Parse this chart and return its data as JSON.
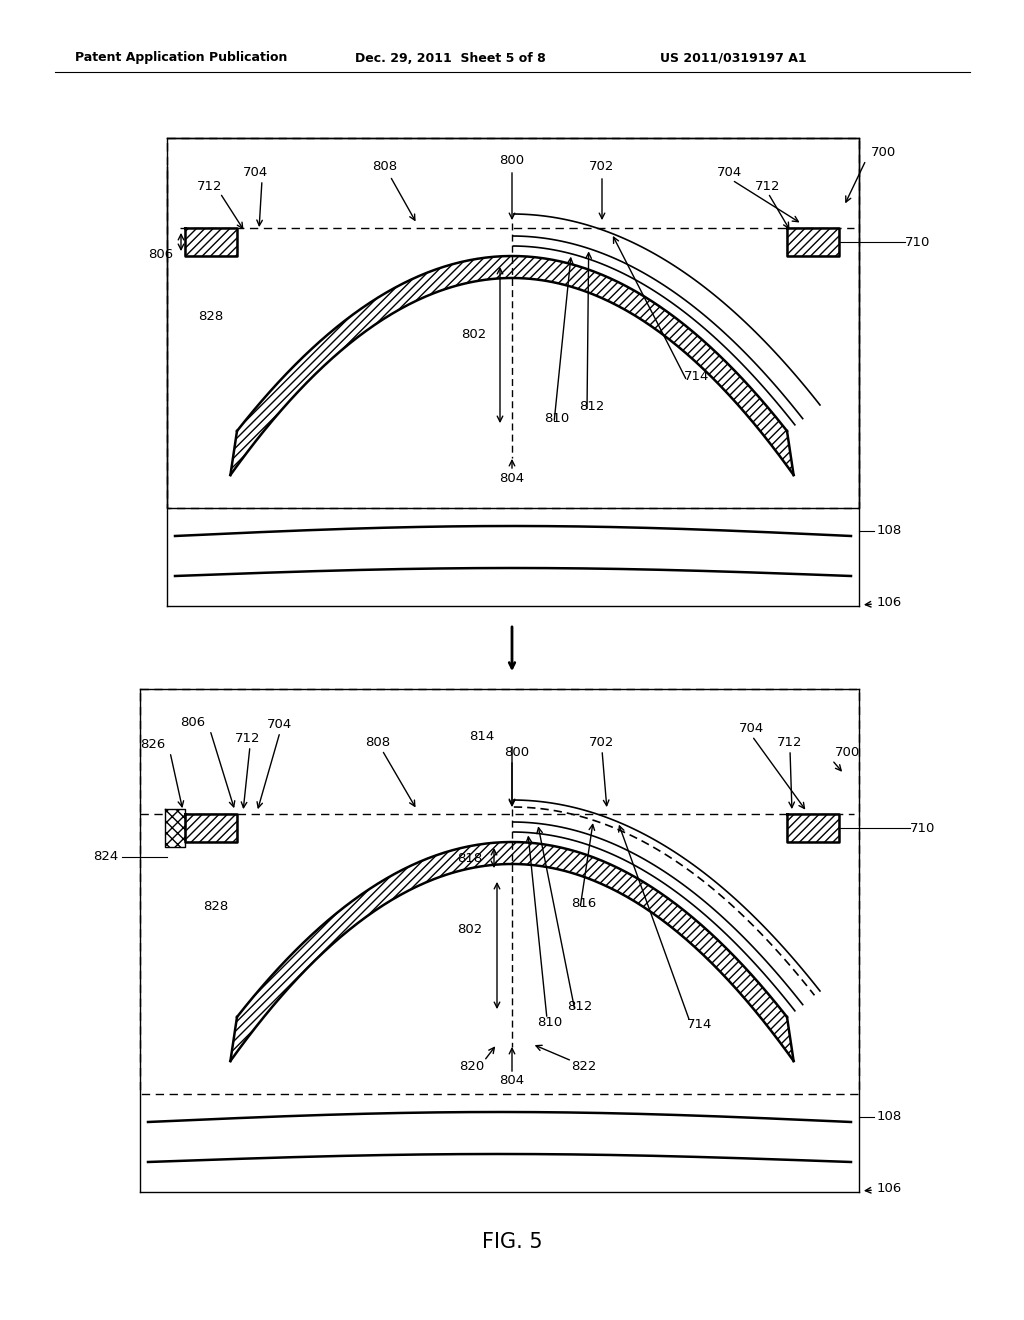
{
  "header_left": "Patent Application Publication",
  "header_mid": "Dec. 29, 2011  Sheet 5 of 8",
  "header_right": "US 2011/0319197 A1",
  "fig_label": "FIG. 5",
  "background_color": "#ffffff",
  "line_color": "#000000"
}
